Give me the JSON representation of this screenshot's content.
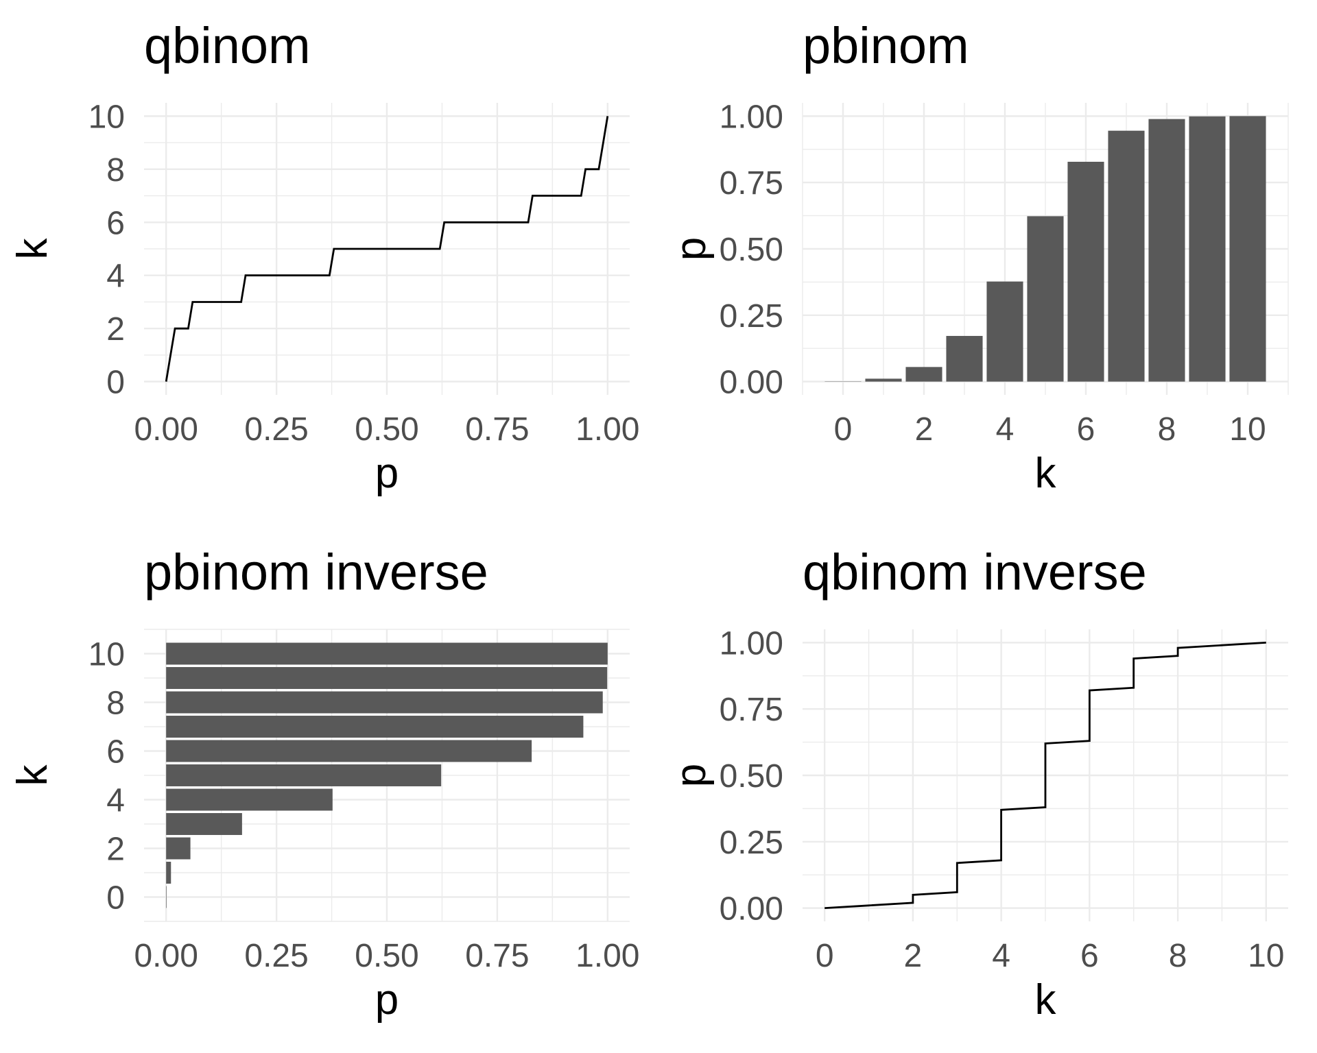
{
  "style": {
    "background": "#FFFFFF",
    "bar_fill": "#595959",
    "line_stroke": "#000000",
    "grid_color": "#EBEBEB",
    "tick_label_color": "#4D4D4D",
    "title_color": "#000000"
  },
  "chart_data": [
    {
      "type": "line",
      "title": "qbinom",
      "xlabel": "p",
      "ylabel": "k",
      "legend": "none",
      "grid": "on",
      "x": {
        "domain": [
          -0.05,
          1.05
        ],
        "ticks": {
          "values": [
            0,
            0.25,
            0.5,
            0.75,
            1
          ],
          "labels": [
            "0.00",
            "0.25",
            "0.50",
            "0.75",
            "1.00"
          ]
        },
        "minor": [
          0.125,
          0.375,
          0.625,
          0.875
        ]
      },
      "y": {
        "domain": [
          -0.5,
          10.5
        ],
        "ticks": {
          "values": [
            0,
            2,
            4,
            6,
            8,
            10
          ],
          "labels": [
            "0",
            "2",
            "4",
            "6",
            "8",
            "10"
          ]
        },
        "minor": [
          1,
          3,
          5,
          7,
          9
        ]
      },
      "points": [
        [
          0,
          0
        ],
        [
          0.01,
          1
        ],
        [
          0.02,
          2
        ],
        [
          0.05,
          2
        ],
        [
          0.06,
          3
        ],
        [
          0.17,
          3
        ],
        [
          0.18,
          4
        ],
        [
          0.37,
          4
        ],
        [
          0.38,
          5
        ],
        [
          0.62,
          5
        ],
        [
          0.63,
          6
        ],
        [
          0.82,
          6
        ],
        [
          0.83,
          7
        ],
        [
          0.94,
          7
        ],
        [
          0.95,
          8
        ],
        [
          0.98,
          8
        ],
        [
          0.99,
          9
        ],
        [
          1,
          10
        ]
      ]
    },
    {
      "type": "bar",
      "title": "pbinom",
      "xlabel": "k",
      "ylabel": "p",
      "legend": "none",
      "grid": "on",
      "orientation": "vertical",
      "x": {
        "domain": [
          -1,
          11
        ],
        "ticks": {
          "values": [
            0,
            2,
            4,
            6,
            8,
            10
          ],
          "labels": [
            "0",
            "2",
            "4",
            "6",
            "8",
            "10"
          ]
        },
        "minor": [
          -1,
          1,
          3,
          5,
          7,
          9,
          11
        ]
      },
      "y": {
        "domain": [
          -0.05,
          1.05
        ],
        "ticks": {
          "values": [
            0,
            0.25,
            0.5,
            0.75,
            1
          ],
          "labels": [
            "0.00",
            "0.25",
            "0.50",
            "0.75",
            "1.00"
          ]
        },
        "minor": [
          0.125,
          0.375,
          0.625,
          0.875
        ]
      },
      "bars": {
        "categories": [
          0,
          1,
          2,
          3,
          4,
          5,
          6,
          7,
          8,
          9,
          10
        ],
        "values": [
          0.001,
          0.011,
          0.055,
          0.172,
          0.377,
          0.623,
          0.828,
          0.945,
          0.989,
          0.999,
          1.0
        ],
        "bar_width": 0.9
      }
    },
    {
      "type": "bar",
      "title": "pbinom inverse",
      "xlabel": "p",
      "ylabel": "k",
      "legend": "none",
      "grid": "on",
      "orientation": "horizontal",
      "x": {
        "domain": [
          -0.05,
          1.05
        ],
        "ticks": {
          "values": [
            0,
            0.25,
            0.5,
            0.75,
            1
          ],
          "labels": [
            "0.00",
            "0.25",
            "0.50",
            "0.75",
            "1.00"
          ]
        },
        "minor": [
          0.125,
          0.375,
          0.625,
          0.875
        ]
      },
      "y": {
        "domain": [
          -1,
          11
        ],
        "ticks": {
          "values": [
            0,
            2,
            4,
            6,
            8,
            10
          ],
          "labels": [
            "0",
            "2",
            "4",
            "6",
            "8",
            "10"
          ]
        },
        "minor": [
          -1,
          1,
          3,
          5,
          7,
          9,
          11
        ]
      },
      "bars": {
        "categories": [
          0,
          1,
          2,
          3,
          4,
          5,
          6,
          7,
          8,
          9,
          10
        ],
        "values": [
          0.001,
          0.011,
          0.055,
          0.172,
          0.377,
          0.623,
          0.828,
          0.945,
          0.989,
          0.999,
          1.0
        ],
        "bar_width": 0.9
      }
    },
    {
      "type": "line",
      "title": "qbinom inverse",
      "xlabel": "k",
      "ylabel": "p",
      "legend": "none",
      "grid": "on",
      "x": {
        "domain": [
          -0.5,
          10.5
        ],
        "ticks": {
          "values": [
            0,
            2,
            4,
            6,
            8,
            10
          ],
          "labels": [
            "0",
            "2",
            "4",
            "6",
            "8",
            "10"
          ]
        },
        "minor": [
          1,
          3,
          5,
          7,
          9
        ]
      },
      "y": {
        "domain": [
          -0.05,
          1.05
        ],
        "ticks": {
          "values": [
            0,
            0.25,
            0.5,
            0.75,
            1
          ],
          "labels": [
            "0.00",
            "0.25",
            "0.50",
            "0.75",
            "1.00"
          ]
        },
        "minor": [
          0.125,
          0.375,
          0.625,
          0.875
        ]
      },
      "points": [
        [
          0,
          0
        ],
        [
          1,
          0.01
        ],
        [
          2,
          0.02
        ],
        [
          2,
          0.05
        ],
        [
          3,
          0.06
        ],
        [
          3,
          0.17
        ],
        [
          4,
          0.18
        ],
        [
          4,
          0.37
        ],
        [
          5,
          0.38
        ],
        [
          5,
          0.62
        ],
        [
          6,
          0.63
        ],
        [
          6,
          0.82
        ],
        [
          7,
          0.83
        ],
        [
          7,
          0.94
        ],
        [
          8,
          0.95
        ],
        [
          8,
          0.98
        ],
        [
          9,
          0.99
        ],
        [
          10,
          1
        ]
      ]
    }
  ]
}
